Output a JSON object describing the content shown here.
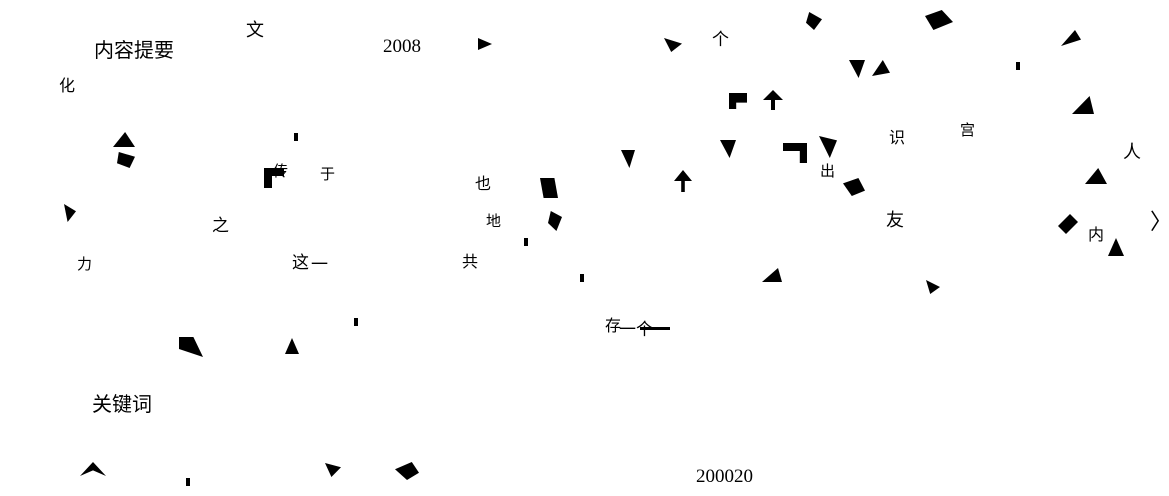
{
  "document": {
    "abstract_heading": "内容提要",
    "keywords_heading": "关键词",
    "year": "2008",
    "code": "200020",
    "fragments": [
      "文",
      "化",
      "人",
      "友",
      "力",
      "之",
      "这",
      "一",
      "个",
      "一个",
      "于",
      "存",
      "识",
      "也",
      "地",
      "传",
      "出",
      "内",
      "共",
      "宫"
    ]
  }
}
